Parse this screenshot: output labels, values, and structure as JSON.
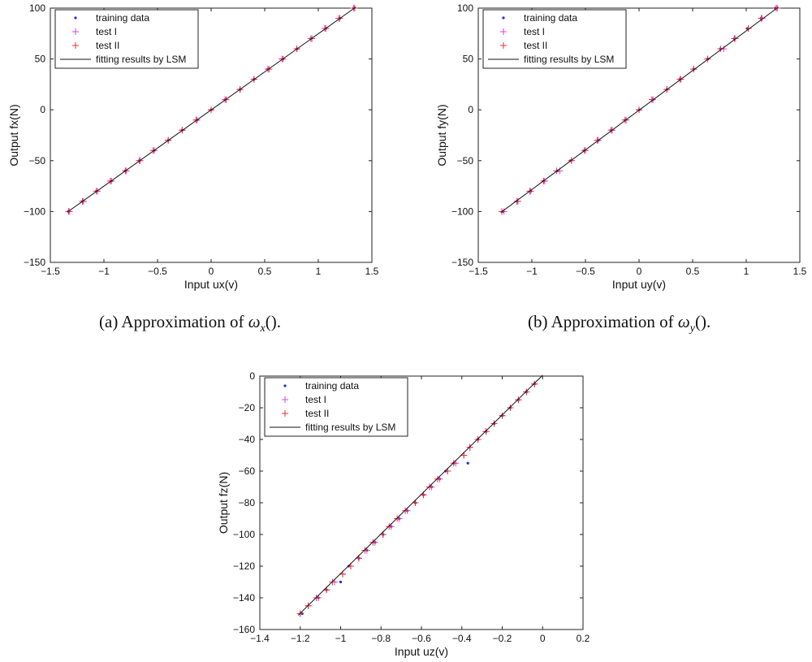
{
  "figure": {
    "captions": [
      {
        "prefix": "(a)",
        "text": "Approximation of",
        "symbol": "ω",
        "sub": "x",
        "suffix": "()."
      },
      {
        "prefix": "(b)",
        "text": "Approximation of",
        "symbol": "ω",
        "sub": "y",
        "suffix": "()."
      }
    ]
  },
  "chart_data": [
    {
      "type": "scatter",
      "xlabel": "Input ux(v)",
      "ylabel": "Output fx(N)",
      "xlim": [
        -1.5,
        1.5
      ],
      "ylim": [
        -150,
        100
      ],
      "xticks": [
        -1.5,
        -1,
        -0.5,
        0,
        0.5,
        1,
        1.5
      ],
      "xtick_labels": [
        "−1.5",
        "−1",
        "−0.5",
        "0",
        "0.5",
        "1",
        "1.5"
      ],
      "yticks": [
        -150,
        -100,
        -50,
        0,
        50,
        100
      ],
      "ytick_labels": [
        "−150",
        "−100",
        "−50",
        "0",
        "50",
        "100"
      ],
      "grid": false,
      "legend_position": "top-left",
      "series": [
        {
          "name": "training data",
          "marker": "dot",
          "color": "#1f2fd6",
          "x": [
            -1.33,
            -1.2,
            -1.07,
            -0.93,
            -0.8,
            -0.67,
            -0.53,
            -0.4,
            -0.27,
            -0.13,
            0,
            0.13,
            0.27,
            0.4,
            0.53,
            0.67,
            0.8,
            0.93,
            1.07,
            1.2,
            1.33
          ],
          "y": [
            -100,
            -90,
            -80,
            -70,
            -60,
            -50,
            -40,
            -30,
            -20,
            -10,
            0,
            10,
            20,
            30,
            40,
            50,
            60,
            70,
            80,
            90,
            100
          ]
        },
        {
          "name": "test I",
          "marker": "plus",
          "color": "#e040e0",
          "x": [
            -1.32,
            -1.19,
            -1.06,
            -0.93,
            -0.79,
            -0.66,
            -0.53,
            -0.4,
            -0.27,
            -0.13,
            0,
            0.13,
            0.27,
            0.4,
            0.53,
            0.66,
            0.8,
            0.93,
            1.06,
            1.19,
            1.33
          ],
          "y": [
            -100,
            -90,
            -80,
            -70,
            -60,
            -50,
            -40,
            -30,
            -20,
            -10,
            0,
            10,
            20,
            30,
            40,
            50,
            60,
            70,
            80,
            90,
            100
          ]
        },
        {
          "name": "test II",
          "marker": "plus",
          "color": "#e83030",
          "x": [
            -1.33,
            -1.2,
            -1.07,
            -0.94,
            -0.8,
            -0.67,
            -0.54,
            -0.4,
            -0.27,
            -0.14,
            0,
            0.14,
            0.27,
            0.4,
            0.54,
            0.67,
            0.8,
            0.94,
            1.07,
            1.2,
            1.34
          ],
          "y": [
            -100,
            -90,
            -80,
            -70,
            -60,
            -50,
            -40,
            -30,
            -20,
            -10,
            0,
            10,
            20,
            30,
            40,
            50,
            60,
            70,
            80,
            90,
            100
          ]
        },
        {
          "name": "fitting results by LSM",
          "marker": "line",
          "color": "#111111",
          "x": [
            -1.34,
            1.35
          ],
          "y": [
            -100.5,
            101
          ]
        }
      ]
    },
    {
      "type": "scatter",
      "xlabel": "Input uy(v)",
      "ylabel": "Output fy(N)",
      "xlim": [
        -1.5,
        1.5
      ],
      "ylim": [
        -150,
        100
      ],
      "xticks": [
        -1.5,
        -1,
        -0.5,
        0,
        0.5,
        1,
        1.5
      ],
      "xtick_labels": [
        "−1.5",
        "−1",
        "−0.5",
        "0",
        "0.5",
        "1",
        "1.5"
      ],
      "yticks": [
        -150,
        -100,
        -50,
        0,
        50,
        100
      ],
      "ytick_labels": [
        "−150",
        "−100",
        "−50",
        "0",
        "50",
        "100"
      ],
      "grid": false,
      "legend_position": "top-left",
      "series": [
        {
          "name": "training data",
          "marker": "dot",
          "color": "#1f2fd6",
          "x": [
            -1.27,
            -1.14,
            -1.01,
            -0.89,
            -0.76,
            -0.64,
            -0.51,
            -0.38,
            -0.26,
            -0.13,
            0,
            0.13,
            0.26,
            0.38,
            0.51,
            0.64,
            0.76,
            0.89,
            1.01,
            1.14,
            1.27
          ],
          "y": [
            -100,
            -90,
            -80,
            -70,
            -60,
            -50,
            -40,
            -30,
            -20,
            -10,
            0,
            10,
            20,
            30,
            40,
            50,
            60,
            70,
            80,
            90,
            100
          ]
        },
        {
          "name": "test I",
          "marker": "plus",
          "color": "#e040e0",
          "x": [
            -1.26,
            -1.14,
            -1.01,
            -0.88,
            -0.74,
            -0.63,
            -0.5,
            -0.38,
            -0.25,
            -0.12,
            0,
            0.13,
            0.26,
            0.38,
            0.51,
            0.64,
            0.79,
            0.9,
            1.02,
            1.15,
            1.29
          ],
          "y": [
            -100,
            -90,
            -80,
            -70,
            -60,
            -50,
            -40,
            -30,
            -20,
            -10,
            0,
            10,
            20,
            30,
            40,
            50,
            60,
            70,
            80,
            90,
            100
          ]
        },
        {
          "name": "test II",
          "marker": "plus",
          "color": "#e83030",
          "x": [
            -1.28,
            -1.13,
            -1.02,
            -0.89,
            -0.77,
            -0.63,
            -0.51,
            -0.39,
            -0.26,
            -0.13,
            0,
            0.12,
            0.26,
            0.39,
            0.51,
            0.64,
            0.76,
            0.89,
            1.02,
            1.14,
            1.28
          ],
          "y": [
            -100,
            -90,
            -80,
            -70,
            -60,
            -50,
            -40,
            -30,
            -20,
            -10,
            0,
            10,
            20,
            30,
            40,
            50,
            60,
            70,
            80,
            90,
            100
          ]
        },
        {
          "name": "fitting results by LSM",
          "marker": "line",
          "color": "#111111",
          "x": [
            -1.29,
            1.3
          ],
          "y": [
            -101,
            101
          ]
        }
      ]
    },
    {
      "type": "scatter",
      "xlabel": "Input uz(v)",
      "ylabel": "Output fz(N)",
      "xlim": [
        -1.4,
        0.2
      ],
      "ylim": [
        -160,
        0
      ],
      "xticks": [
        -1.4,
        -1.2,
        -1,
        -0.8,
        -0.6,
        -0.4,
        -0.2,
        0,
        0.2
      ],
      "xtick_labels": [
        "−1.4",
        "−1.2",
        "−1",
        "−0.8",
        "−0.6",
        "−0.4",
        "−0.2",
        "0",
        "0.2"
      ],
      "yticks": [
        -160,
        -140,
        -120,
        -100,
        -80,
        -60,
        -40,
        -20,
        0
      ],
      "ytick_labels": [
        "−160",
        "−140",
        "−120",
        "−100",
        "−80",
        "−60",
        "−40",
        "−20",
        "0"
      ],
      "grid": false,
      "legend_position": "top-left",
      "series": [
        {
          "name": "training data",
          "marker": "dot",
          "color": "#1f2fd6",
          "x": [
            -1.19,
            -1.11,
            -1.07,
            -1.0,
            -0.96,
            -0.91,
            -0.87,
            -0.83,
            -0.79,
            -0.75,
            -0.71,
            -0.67,
            -0.63,
            -0.59,
            -0.55,
            -0.51,
            -0.48,
            -0.44,
            -0.37,
            -0.32,
            -0.28,
            -0.24,
            -0.2,
            -0.16,
            -0.12,
            -0.08,
            -0.04
          ],
          "y": [
            -150,
            -140,
            -135,
            -130,
            -120,
            -115,
            -110,
            -105,
            -100,
            -95,
            -90,
            -85,
            -80,
            -75,
            -70,
            -65,
            -60,
            -55,
            -55,
            -40,
            -35,
            -30,
            -25,
            -20,
            -15,
            -10,
            -5
          ]
        },
        {
          "name": "test I",
          "marker": "plus",
          "color": "#e040e0",
          "x": [
            -1.2,
            -1.16,
            -1.11,
            -1.07,
            -1.03,
            -0.99,
            -0.95,
            -0.91,
            -0.87,
            -0.83,
            -0.79,
            -0.75,
            -0.71,
            -0.67,
            -0.63,
            -0.59,
            -0.55,
            -0.51,
            -0.47,
            -0.43,
            -0.39,
            -0.36,
            -0.32,
            -0.28,
            -0.24,
            -0.2,
            -0.16,
            -0.12,
            -0.08,
            -0.04
          ],
          "y": [
            -150,
            -145,
            -140,
            -135,
            -130,
            -125,
            -120,
            -115,
            -110,
            -105,
            -100,
            -95,
            -90,
            -85,
            -80,
            -75,
            -70,
            -65,
            -60,
            -55,
            -50,
            -45,
            -40,
            -35,
            -30,
            -25,
            -20,
            -15,
            -10,
            -5
          ]
        },
        {
          "name": "test II",
          "marker": "plus",
          "color": "#e83030",
          "x": [
            -1.2,
            -1.16,
            -1.12,
            -1.07,
            -1.04,
            -0.99,
            -0.95,
            -0.91,
            -0.88,
            -0.84,
            -0.79,
            -0.76,
            -0.72,
            -0.68,
            -0.63,
            -0.59,
            -0.56,
            -0.52,
            -0.47,
            -0.44,
            -0.39,
            -0.36,
            -0.32,
            -0.28,
            -0.24,
            -0.2,
            -0.16,
            -0.12,
            -0.08,
            -0.04
          ],
          "y": [
            -150,
            -145,
            -140,
            -135,
            -130,
            -125,
            -120,
            -115,
            -110,
            -105,
            -100,
            -95,
            -90,
            -85,
            -80,
            -75,
            -70,
            -65,
            -60,
            -55,
            -50,
            -45,
            -40,
            -35,
            -30,
            -25,
            -20,
            -15,
            -10,
            -5
          ]
        },
        {
          "name": "fitting results by LSM",
          "marker": "line",
          "color": "#111111",
          "x": [
            -1.21,
            0.0
          ],
          "y": [
            -151,
            0.5
          ]
        }
      ]
    }
  ]
}
